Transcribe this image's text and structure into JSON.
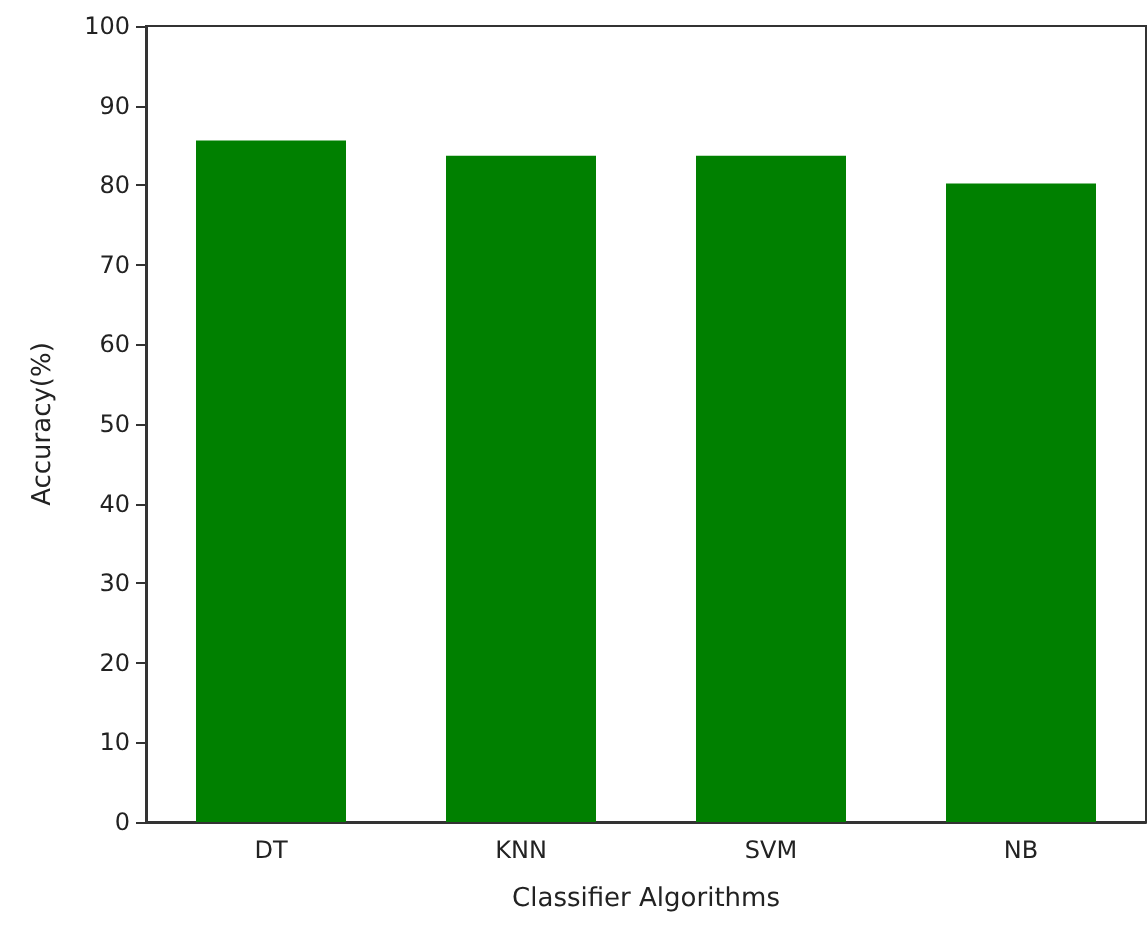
{
  "chart_data": {
    "type": "bar",
    "xlabel": "Classifier Algorithms",
    "ylabel": "Accuracy(%)",
    "categories": [
      "DT",
      "KNN",
      "SVM",
      "NB"
    ],
    "values": [
      85.6,
      83.7,
      83.7,
      80.2
    ],
    "color": "#008000",
    "ylim": [
      0,
      100
    ],
    "yticks": [
      0,
      10,
      20,
      30,
      40,
      50,
      60,
      70,
      80,
      90,
      100
    ],
    "grid": false
  }
}
